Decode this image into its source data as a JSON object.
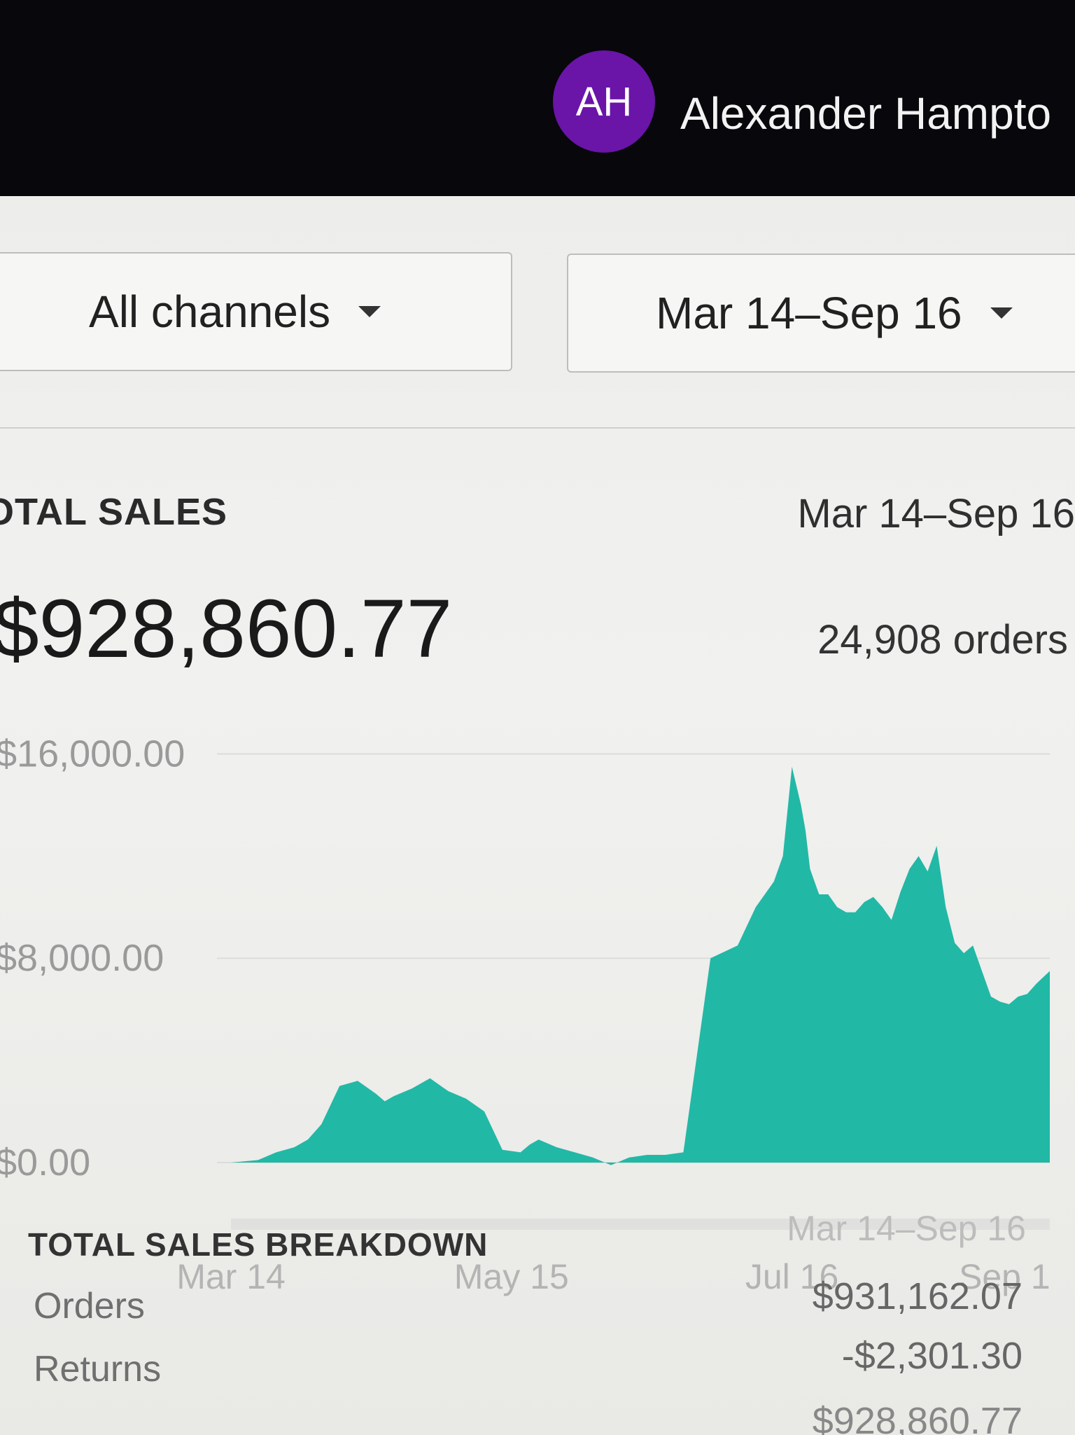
{
  "header": {
    "avatar_initials": "AH",
    "avatar_color": "#6a14a8",
    "user_name": "Alexander Hampto"
  },
  "filters": {
    "channel": "All channels",
    "date_range": "Mar 14–Sep 16"
  },
  "total_sales": {
    "label": "OTAL SALES",
    "date_range": "Mar 14–Sep 16",
    "amount": "$928,860.77",
    "orders": "24,908 orders"
  },
  "chart_data": {
    "type": "area",
    "color": "#22b8a6",
    "y_ticks": [
      "$16,000.00",
      "$8,000.00",
      "$0.00"
    ],
    "ylim": [
      0,
      17000
    ],
    "x_ticks": [
      {
        "label": "Mar 14",
        "day": 0
      },
      {
        "label": "May 15",
        "day": 62
      },
      {
        "label": "Jul 16",
        "day": 124
      },
      {
        "label": "Sep 1",
        "day": 171
      }
    ],
    "x": [
      0,
      6,
      10,
      14,
      17,
      20,
      24,
      28,
      32,
      34,
      36,
      40,
      44,
      48,
      52,
      56,
      60,
      64,
      66,
      68,
      72,
      76,
      80,
      84,
      88,
      92,
      96,
      100,
      106,
      112,
      116,
      120,
      122,
      124,
      126,
      127,
      128,
      130,
      132,
      134,
      136,
      138,
      140,
      142,
      144,
      146,
      148,
      150,
      152,
      154,
      156,
      158,
      160,
      162,
      164,
      166,
      168,
      170,
      172,
      174,
      176,
      178,
      181
    ],
    "y": [
      0,
      100,
      400,
      600,
      900,
      1500,
      3000,
      3200,
      2700,
      2400,
      2600,
      2900,
      3300,
      2800,
      2500,
      2000,
      500,
      400,
      700,
      900,
      600,
      400,
      200,
      -100,
      200,
      300,
      300,
      400,
      8000,
      8500,
      10000,
      11000,
      12000,
      15500,
      14000,
      13000,
      11500,
      10500,
      10500,
      10000,
      9800,
      9800,
      10200,
      10400,
      10000,
      9500,
      10600,
      11500,
      12000,
      11400,
      12400,
      10000,
      8600,
      8200,
      8500,
      7500,
      6500,
      6300,
      6200,
      6500,
      6600,
      7000,
      7500
    ]
  },
  "breakdown": {
    "label": "TOTAL SALES BREAKDOWN",
    "date_range": "Mar 14–Sep 16",
    "rows": [
      {
        "label": "Orders",
        "value": "$931,162.07"
      },
      {
        "label": "Returns",
        "value": "-$2,301.30"
      }
    ],
    "net_value": "$928,860.77"
  }
}
